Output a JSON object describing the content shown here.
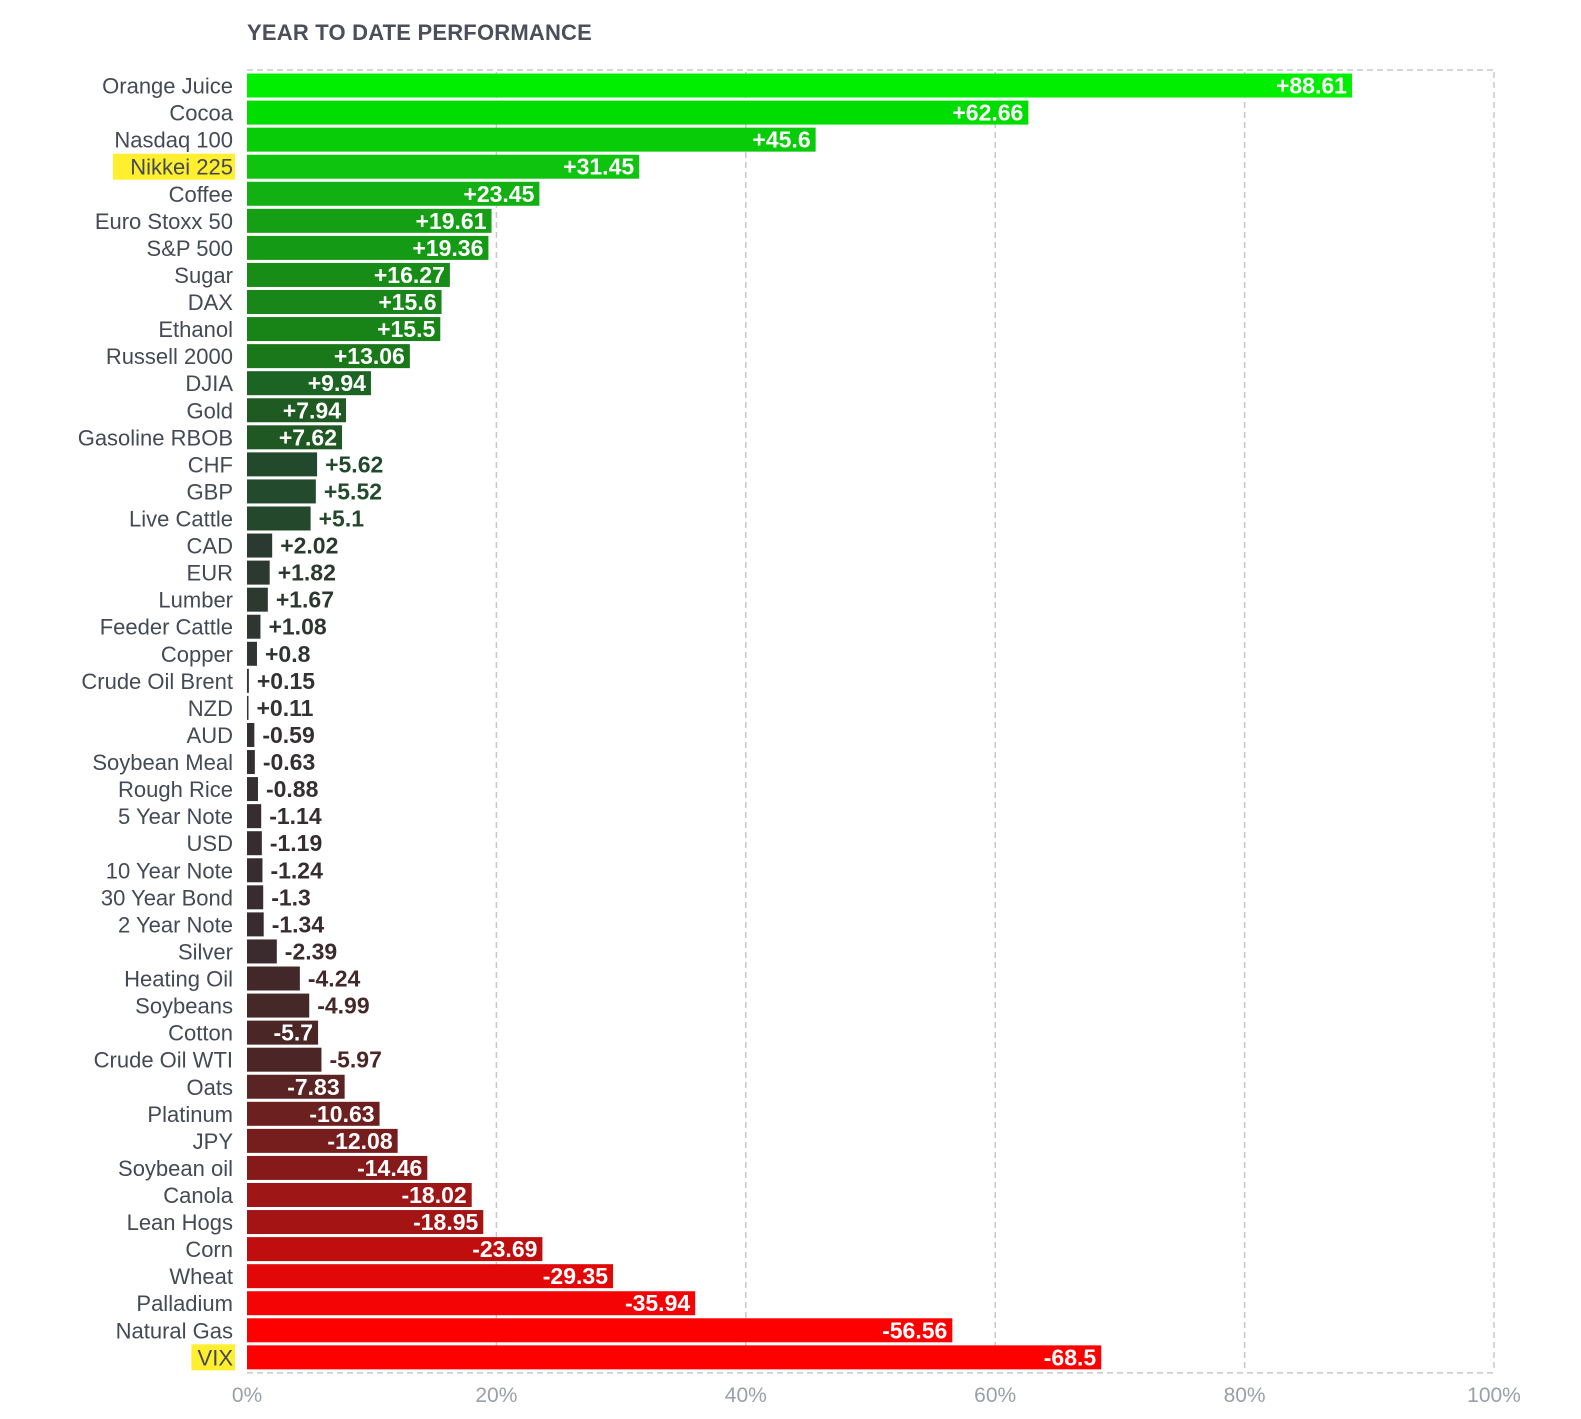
{
  "chart_data": {
    "type": "bar",
    "orientation": "horizontal",
    "title": "YEAR TO DATE PERFORMANCE",
    "xlim": [
      0,
      100
    ],
    "x_ticks": [
      "0%",
      "20%",
      "40%",
      "60%",
      "80%",
      "100%"
    ],
    "grid": true,
    "bar_length": "absolute value",
    "highlighted_categories": [
      "Nikkei 225",
      "VIX"
    ],
    "highlight_color": "#ffef2e",
    "categories": [
      "Orange Juice",
      "Cocoa",
      "Nasdaq 100",
      "Nikkei 225",
      "Coffee",
      "Euro Stoxx 50",
      "S&P 500",
      "Sugar",
      "DAX",
      "Ethanol",
      "Russell 2000",
      "DJIA",
      "Gold",
      "Gasoline RBOB",
      "CHF",
      "GBP",
      "Live Cattle",
      "CAD",
      "EUR",
      "Lumber",
      "Feeder Cattle",
      "Copper",
      "Crude Oil Brent",
      "NZD",
      "AUD",
      "Soybean Meal",
      "Rough Rice",
      "5 Year Note",
      "USD",
      "10 Year Note",
      "30 Year Bond",
      "2 Year Note",
      "Silver",
      "Heating Oil",
      "Soybeans",
      "Cotton",
      "Crude Oil WTI",
      "Oats",
      "Platinum",
      "JPY",
      "Soybean oil",
      "Canola",
      "Lean Hogs",
      "Corn",
      "Wheat",
      "Palladium",
      "Natural Gas",
      "VIX"
    ],
    "values": [
      88.61,
      62.66,
      45.6,
      31.45,
      23.45,
      19.61,
      19.36,
      16.27,
      15.6,
      15.5,
      13.06,
      9.94,
      7.94,
      7.62,
      5.62,
      5.52,
      5.1,
      2.02,
      1.82,
      1.67,
      1.08,
      0.8,
      0.15,
      0.11,
      -0.59,
      -0.63,
      -0.88,
      -1.14,
      -1.19,
      -1.24,
      -1.3,
      -1.34,
      -2.39,
      -4.24,
      -4.99,
      -5.7,
      -5.97,
      -7.83,
      -10.63,
      -12.08,
      -14.46,
      -18.02,
      -18.95,
      -23.69,
      -29.35,
      -35.94,
      -56.56,
      -68.5
    ],
    "value_labels": [
      "+88.61",
      "+62.66",
      "+45.6",
      "+31.45",
      "+23.45",
      "+19.61",
      "+19.36",
      "+16.27",
      "+15.6",
      "+15.5",
      "+13.06",
      "+9.94",
      "+7.94",
      "+7.62",
      "+5.62",
      "+5.52",
      "+5.1",
      "+2.02",
      "+1.82",
      "+1.67",
      "+1.08",
      "+0.8",
      "+0.15",
      "+0.11",
      "-0.59",
      "-0.63",
      "-0.88",
      "-1.14",
      "-1.19",
      "-1.24",
      "-1.3",
      "-1.34",
      "-2.39",
      "-4.24",
      "-4.99",
      "-5.7",
      "-5.97",
      "-7.83",
      "-10.63",
      "-12.08",
      "-14.46",
      "-18.02",
      "-18.95",
      "-23.69",
      "-29.35",
      "-35.94",
      "-56.56",
      "-68.5"
    ],
    "colors": [
      "#00ee00",
      "#00dd00",
      "#08cc08",
      "#0ec40e",
      "#12b012",
      "#149f14",
      "#159a15",
      "#178d17",
      "#188618",
      "#188418",
      "#1a771a",
      "#1c6424",
      "#1e5a22",
      "#1f5822",
      "#23492c",
      "#234a2c",
      "#24482c",
      "#2b3a30",
      "#2c3930",
      "#2c3830",
      "#2f3632",
      "#303432",
      "#323332",
      "#323332",
      "#343032",
      "#343032",
      "#352f32",
      "#372d30",
      "#372d30",
      "#372d30",
      "#382c30",
      "#382c30",
      "#3b2a2e",
      "#43282a",
      "#452828",
      "#4a2626",
      "#4c2626",
      "#5a2424",
      "#6c2020",
      "#761e1e",
      "#861a1a",
      "#9e1616",
      "#a41414",
      "#c00e0e",
      "#e20808",
      "#f40404",
      "#ff0000",
      "#ff0000"
    ]
  }
}
